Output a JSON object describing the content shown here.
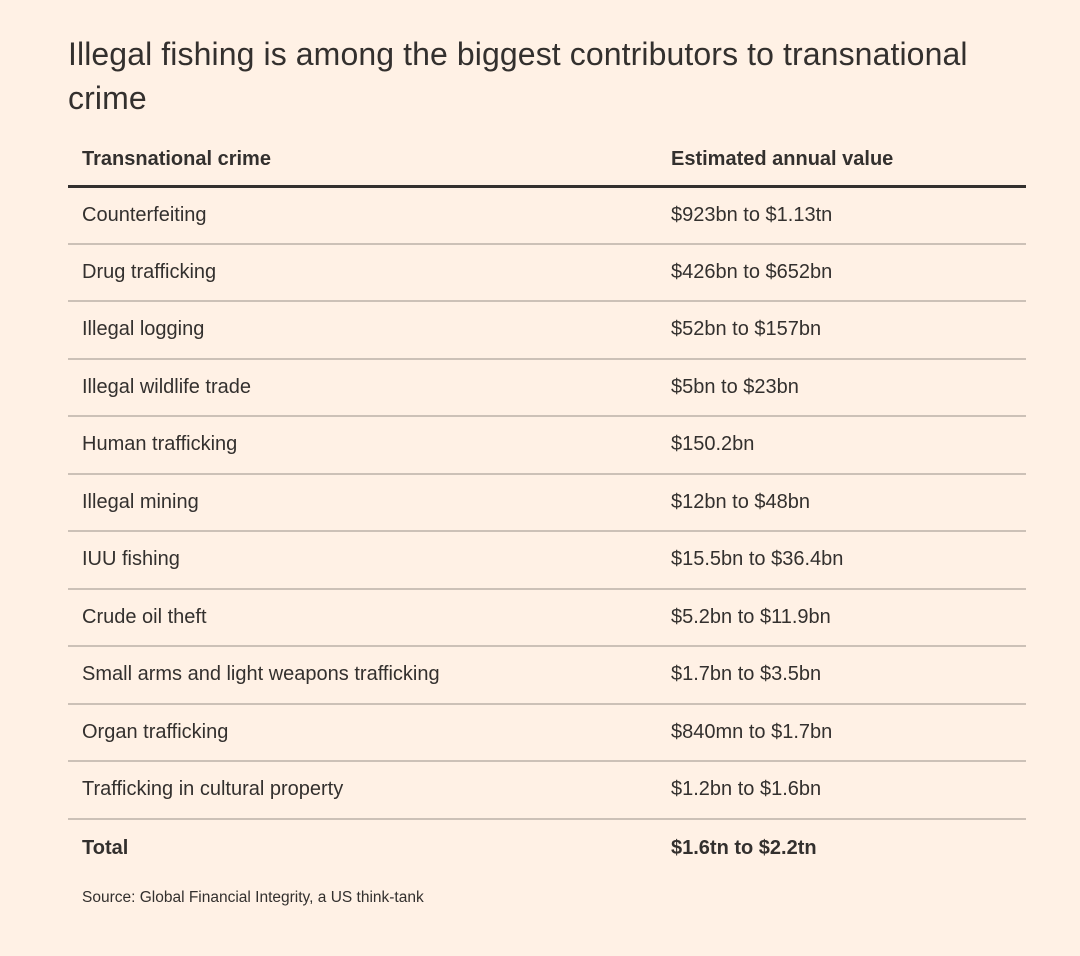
{
  "chart_data": {
    "type": "table",
    "title": "Illegal fishing is among the biggest contributors to transnational crime",
    "columns": [
      "Transnational crime",
      "Estimated annual value"
    ],
    "rows": [
      [
        "Counterfeiting",
        "$923bn to $1.13tn"
      ],
      [
        "Drug trafficking",
        "$426bn to $652bn"
      ],
      [
        "Illegal logging",
        "$52bn to $157bn"
      ],
      [
        "Illegal wildlife trade",
        "$5bn to $23bn"
      ],
      [
        "Human trafficking",
        "$150.2bn"
      ],
      [
        "Illegal mining",
        "$12bn to $48bn"
      ],
      [
        "IUU fishing",
        "$15.5bn to $36.4bn"
      ],
      [
        "Crude oil theft",
        "$5.2bn to $11.9bn"
      ],
      [
        "Small arms and light weapons trafficking",
        "$1.7bn to $3.5bn"
      ],
      [
        "Organ trafficking",
        "$840mn to $1.7bn"
      ],
      [
        "Trafficking in cultural property",
        "$1.2bn to $1.6bn"
      ]
    ],
    "total": [
      "Total",
      "$1.6tn to $2.2tn"
    ],
    "source": "Source: Global Financial Integrity, a US think-tank"
  },
  "colors": {
    "background": "#fff1e5",
    "text": "#33302e",
    "header_rule": "#33302e",
    "row_rule": "#ccc1b7"
  }
}
